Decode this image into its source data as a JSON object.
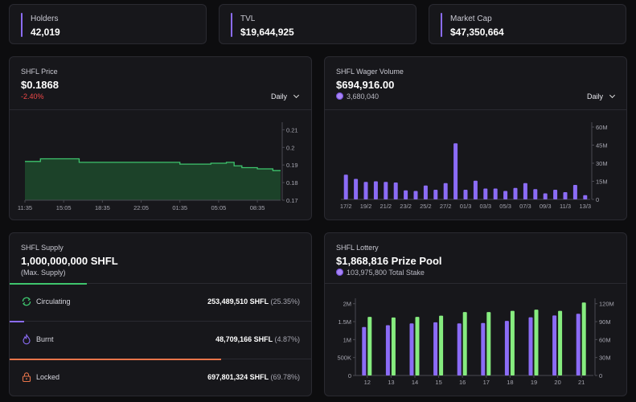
{
  "stats": [
    {
      "label": "Holders",
      "value": "42,019"
    },
    {
      "label": "TVL",
      "value": "$19,644,925"
    },
    {
      "label": "Market Cap",
      "value": "$47,350,664"
    }
  ],
  "price_card": {
    "title": "SHFL Price",
    "value": "$0.1868",
    "change": "-2.40%",
    "range": "Daily"
  },
  "wager_card": {
    "title": "SHFL Wager Volume",
    "value": "$694,916.00",
    "sub": "3,680,040",
    "range": "Daily"
  },
  "supply_card": {
    "title": "SHFL Supply",
    "value": "1,000,000,000 SHFL",
    "sub": "(Max. Supply)",
    "rows": [
      {
        "name": "Circulating",
        "amount": "253,489,510 SHFL",
        "pct": "(25.35%)",
        "fraction": 0.2535,
        "color": "#3ec46d",
        "icon": "circulate-icon"
      },
      {
        "name": "Burnt",
        "amount": "48,709,166 SHFL",
        "pct": "(4.87%)",
        "fraction": 0.0487,
        "color": "#8b6cf6",
        "icon": "flame-icon"
      },
      {
        "name": "Locked",
        "amount": "697,801,324 SHFL",
        "pct": "(69.78%)",
        "fraction": 0.6978,
        "color": "#e8744a",
        "icon": "lock-icon"
      }
    ]
  },
  "lottery_card": {
    "title": "SHFL Lottery",
    "value": "$1,868,816 Prize Pool",
    "sub": "103,975,800 Total Stake"
  },
  "chart_data": [
    {
      "type": "area",
      "x": [
        "11:35",
        "",
        "",
        "",
        "",
        "15:05",
        "",
        "",
        "",
        "",
        "18:35",
        "",
        "",
        "",
        "",
        "22:05",
        "",
        "",
        "",
        "",
        "01:35",
        "",
        "",
        "",
        "",
        "05:05",
        "",
        "",
        "",
        "",
        "08:35",
        "",
        "",
        ""
      ],
      "xticks": [
        "11:35",
        "15:05",
        "18:35",
        "22:05",
        "01:35",
        "05:05",
        "08:35"
      ],
      "values": [
        0.192,
        0.192,
        0.1935,
        0.1935,
        0.1935,
        0.1935,
        0.1935,
        0.1915,
        0.1915,
        0.1915,
        0.1915,
        0.1915,
        0.1915,
        0.1915,
        0.1915,
        0.1915,
        0.1915,
        0.1915,
        0.1915,
        0.1915,
        0.1905,
        0.1905,
        0.1905,
        0.1905,
        0.191,
        0.191,
        0.1915,
        0.1895,
        0.1885,
        0.1885,
        0.1878,
        0.1878,
        0.1868,
        0.1868
      ],
      "ylim": [
        0.17,
        0.212
      ],
      "yticks": [
        0.17,
        0.18,
        0.19,
        0.2,
        0.21
      ],
      "yticklabels": [
        "0.17",
        "0.18",
        "0.19",
        "0.2",
        "0.21"
      ],
      "color": "#3ec46d",
      "grid": false
    },
    {
      "type": "bar",
      "categories": [
        "17/2",
        "18/2",
        "19/2",
        "20/2",
        "21/2",
        "22/2",
        "23/2",
        "24/2",
        "25/2",
        "26/2",
        "27/2",
        "28/2",
        "01/3",
        "02/3",
        "03/3",
        "04/3",
        "05/3",
        "06/3",
        "07/3",
        "08/3",
        "09/3",
        "10/3",
        "11/3",
        "12/3",
        "13/3"
      ],
      "xticks": [
        "17/2",
        "19/2",
        "21/2",
        "23/2",
        "25/2",
        "27/2",
        "01/3",
        "03/3",
        "05/3",
        "07/3",
        "09/3",
        "11/3",
        "13/3"
      ],
      "values": [
        20500000,
        17000000,
        14500000,
        15000000,
        14500000,
        14000000,
        7500000,
        7000000,
        11500000,
        8000000,
        13500000,
        46500000,
        8000000,
        15500000,
        9000000,
        9000000,
        7000000,
        9500000,
        13500000,
        8500000,
        5000000,
        8000000,
        6000000,
        12000000,
        3500000
      ],
      "ylim": [
        0,
        64000000
      ],
      "yticks": [
        0,
        15000000,
        30000000,
        45000000,
        60000000
      ],
      "yticklabels": [
        "0",
        "15M",
        "30M",
        "45M",
        "60M"
      ],
      "color": "#8b6cf6"
    },
    {
      "type": "bar",
      "categories": [
        "12",
        "13",
        "14",
        "15",
        "16",
        "17",
        "18",
        "19",
        "20",
        "21"
      ],
      "series": [
        {
          "values": [
            1350000,
            1400000,
            1450000,
            1480000,
            1450000,
            1460000,
            1520000,
            1620000,
            1670000,
            1720000
          ],
          "color": "#8b6cf6",
          "axis": "left"
        },
        {
          "values": [
            98000000,
            97000000,
            98000000,
            100000000,
            106000000,
            106000000,
            108000000,
            110000000,
            108000000,
            122000000
          ],
          "color": "#86ec7f",
          "axis": "right"
        }
      ],
      "ylim_left": [
        0,
        2150000
      ],
      "yticks_left": [
        0,
        500000,
        1000000,
        1500000,
        2000000
      ],
      "yticklabels_left": [
        "0",
        "500K",
        "1M",
        "1.5M",
        "2M"
      ],
      "ylim_right": [
        0,
        129000000
      ],
      "yticks_right": [
        0,
        30000000,
        60000000,
        90000000,
        120000000
      ],
      "yticklabels_right": [
        "0",
        "30M",
        "60M",
        "90M",
        "120M"
      ]
    }
  ]
}
